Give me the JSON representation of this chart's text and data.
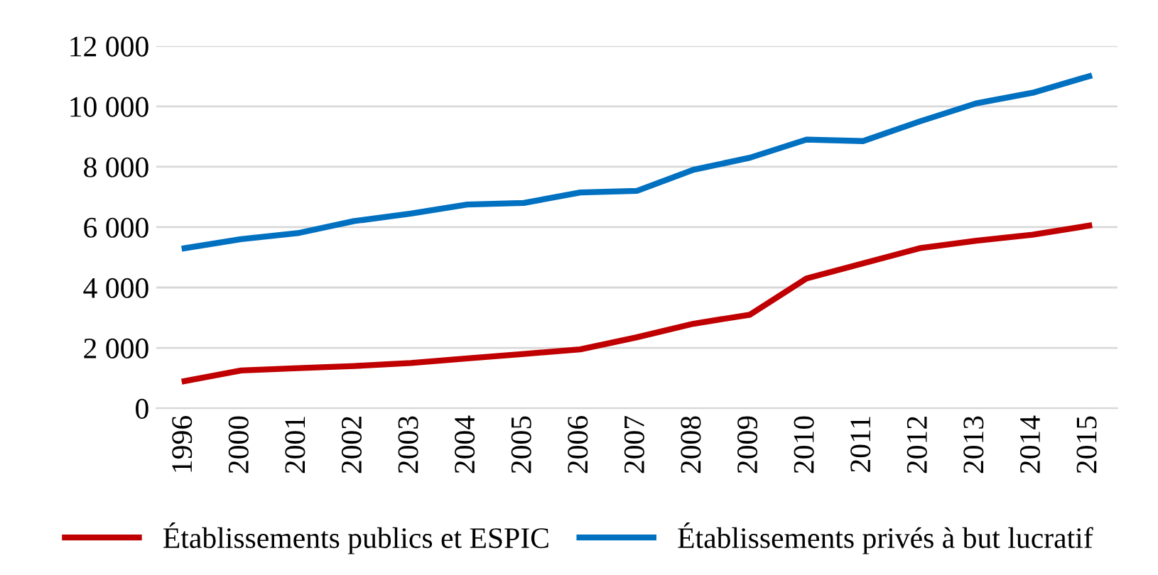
{
  "chart_data": {
    "type": "line",
    "categories": [
      "1996",
      "2000",
      "2001",
      "2002",
      "2003",
      "2004",
      "2005",
      "2006",
      "2007",
      "2008",
      "2009",
      "2010",
      "2011",
      "2012",
      "2013",
      "2014",
      "2015"
    ],
    "series": [
      {
        "name": "Établissements publics et ESPIC",
        "color": "#c00000",
        "values": [
          900,
          1250,
          1330,
          1400,
          1500,
          1650,
          1800,
          1950,
          2350,
          2800,
          3100,
          4300,
          4800,
          5300,
          5550,
          5750,
          6050
        ]
      },
      {
        "name": "Établissements privés à but lucratif",
        "color": "#0070c0",
        "values": [
          5300,
          5600,
          5800,
          6200,
          6450,
          6750,
          6800,
          7150,
          7200,
          7900,
          8300,
          8900,
          8850,
          9500,
          10100,
          10450,
          11000
        ]
      }
    ],
    "ylim": [
      0,
      12000
    ],
    "yticks": [
      0,
      {
        "value": 2000,
        "label": "2 000"
      },
      {
        "value": 4000,
        "label": "4 000"
      },
      {
        "value": 6000,
        "label": "6 000"
      },
      {
        "value": 8000,
        "label": "8 000"
      },
      {
        "value": 10000,
        "label": "10 000"
      },
      {
        "value": 12000,
        "label": "12 000"
      }
    ],
    "grid": "y",
    "legend": "bottom",
    "marker": "none",
    "line_style": "solid"
  }
}
